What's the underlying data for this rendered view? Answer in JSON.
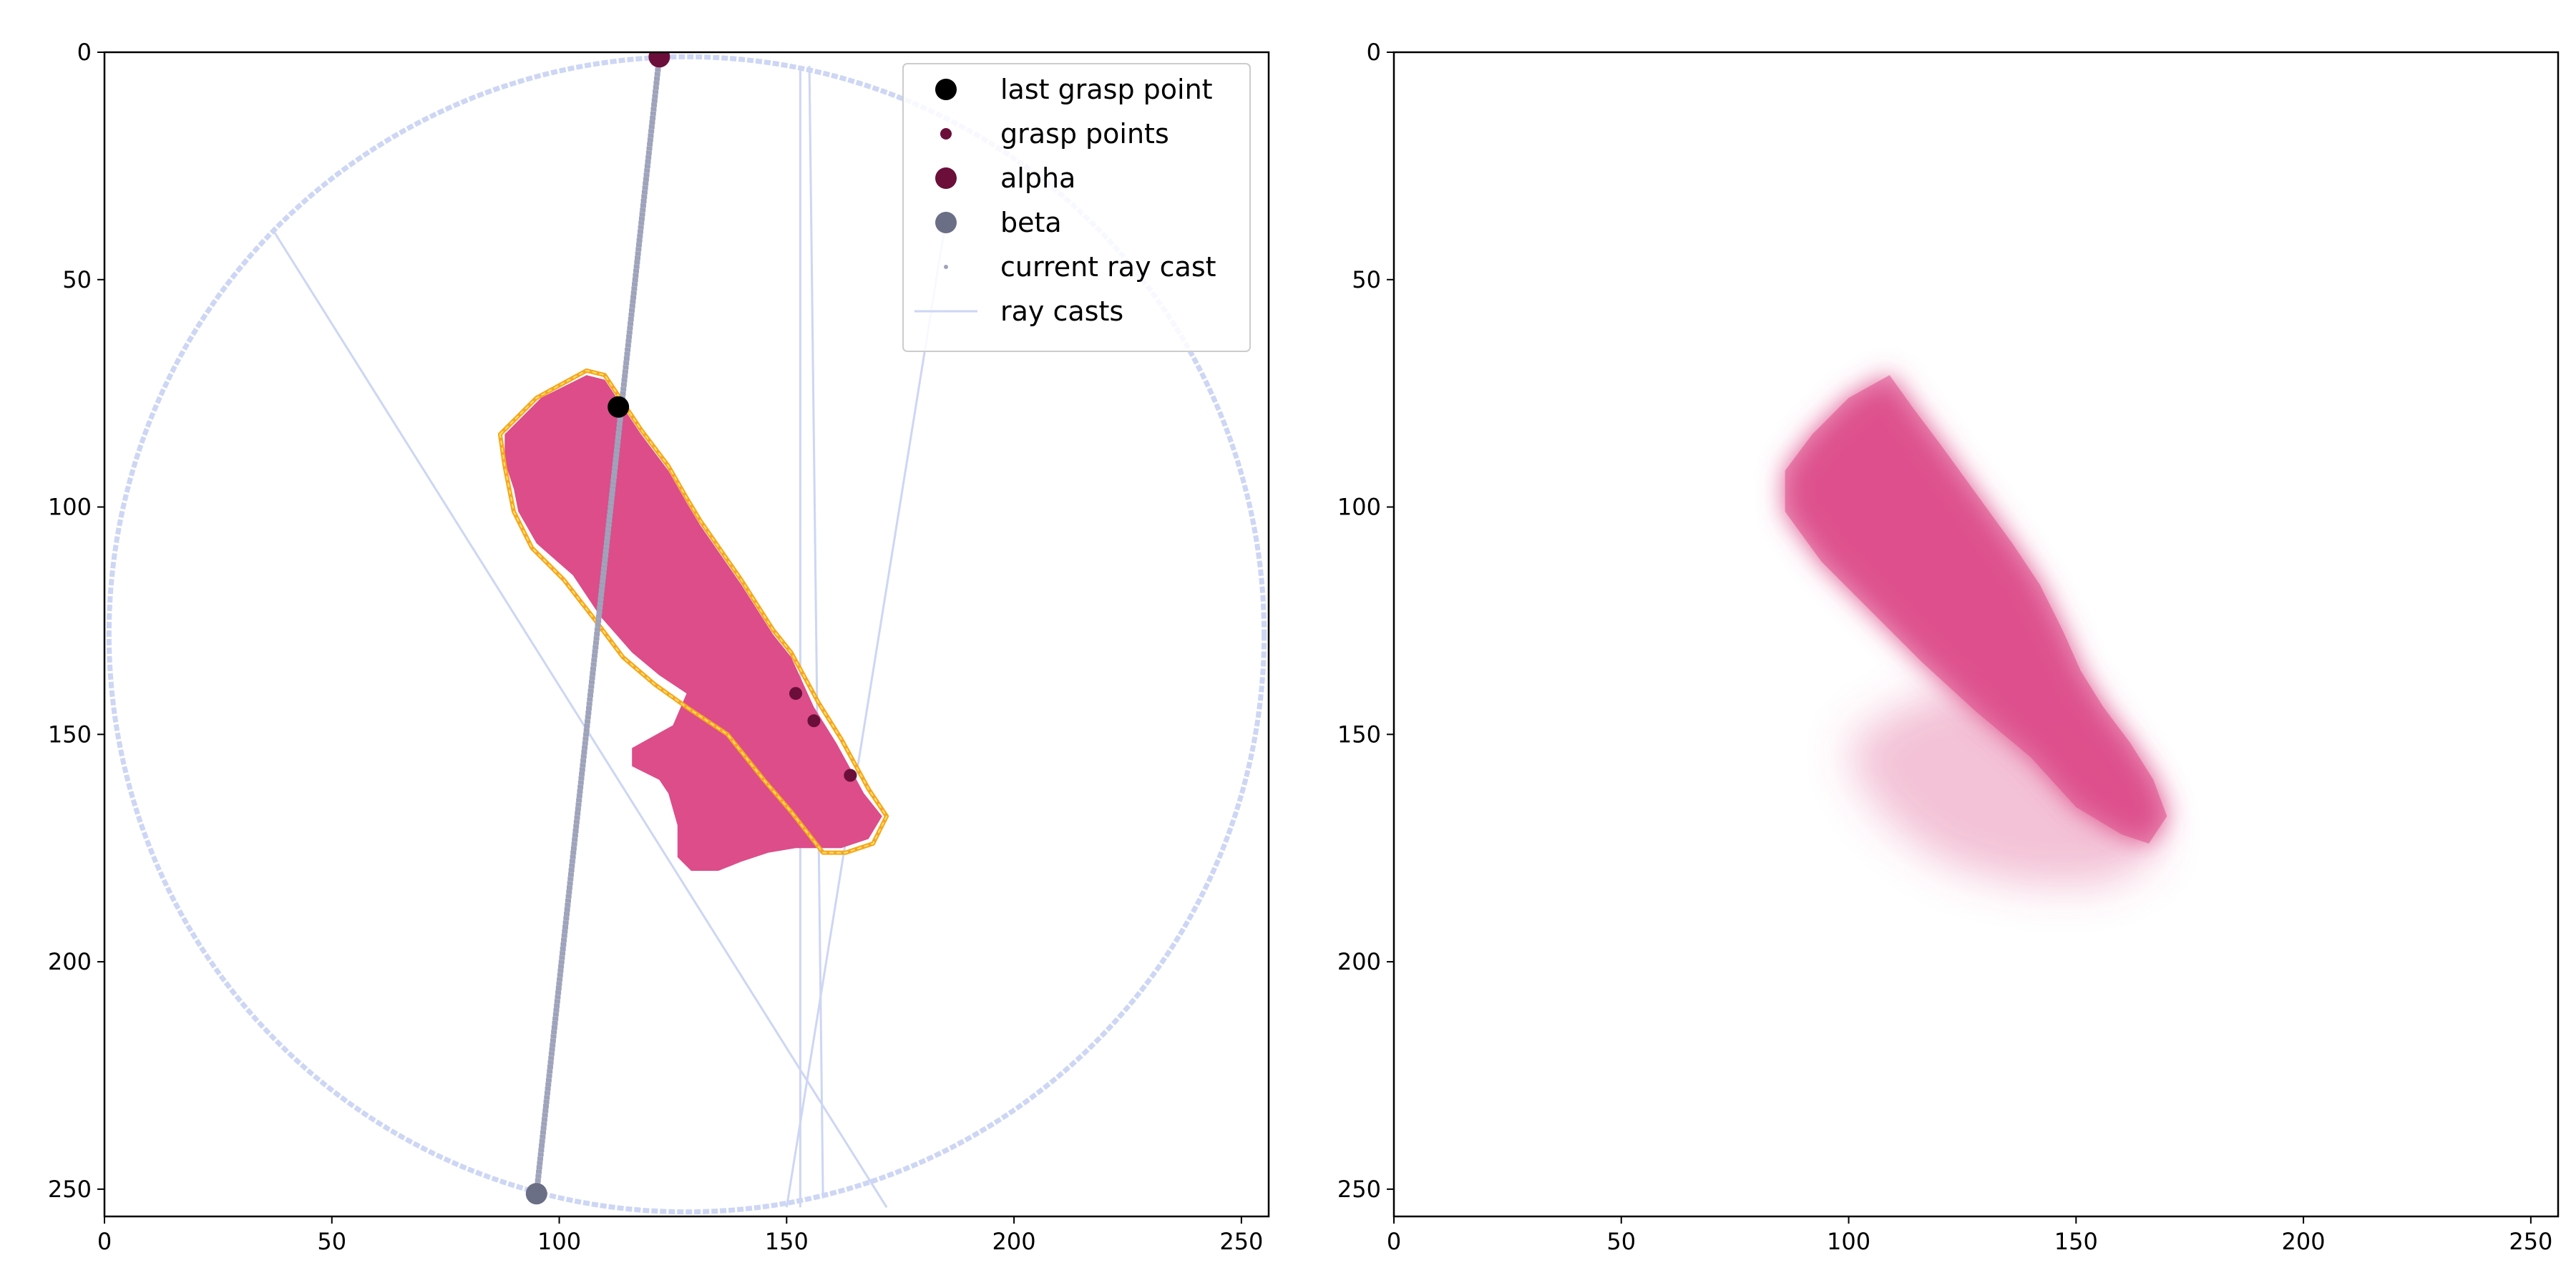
{
  "chart_data": [
    {
      "type": "scatter",
      "title": "",
      "xlabel": "",
      "ylabel": "",
      "xlim": [
        0,
        256
      ],
      "ylim": [
        256,
        0
      ],
      "y_inverted": true,
      "x_ticks": [
        "0",
        "50",
        "100",
        "150",
        "200",
        "250"
      ],
      "y_ticks": [
        "0",
        "50",
        "100",
        "150",
        "200",
        "250"
      ],
      "grid": false,
      "legend_position": "top-right",
      "legend": [
        {
          "label": "last grasp point",
          "marker": "dot-large",
          "color": "#000000"
        },
        {
          "label": "grasp points",
          "marker": "dot-small",
          "color": "#6b0f3a"
        },
        {
          "label": "alpha",
          "marker": "dot-large",
          "color": "#6b0f3a"
        },
        {
          "label": "beta",
          "marker": "dot-large",
          "color": "#6b6f85"
        },
        {
          "label": "current ray cast",
          "marker": "dot-tiny",
          "color": "#9ea3bb"
        },
        {
          "label": "ray casts",
          "marker": "line",
          "color": "#cdd6f4"
        }
      ],
      "colors": {
        "object_fill": "#dc4d8a",
        "contour": "#f5a623",
        "ray_casts": "#cdd6f4",
        "current_ray_cast": "#9ea3bb",
        "grasp_points": "#6b0f3a",
        "last_grasp_point": "#000000",
        "alpha": "#6b0f3a",
        "beta": "#6b6f85"
      },
      "boundary_circle": {
        "center": [
          128,
          128
        ],
        "radius": 127
      },
      "object_polygon": [
        [
          88,
          84
        ],
        [
          96,
          76
        ],
        [
          106,
          71
        ],
        [
          110,
          72
        ],
        [
          114,
          78
        ],
        [
          118,
          84
        ],
        [
          124,
          92
        ],
        [
          128,
          99
        ],
        [
          131,
          104
        ],
        [
          140,
          117
        ],
        [
          147,
          128
        ],
        [
          151,
          133
        ],
        [
          156,
          144
        ],
        [
          161,
          152
        ],
        [
          167,
          163
        ],
        [
          171,
          168
        ],
        [
          168,
          173
        ],
        [
          162,
          175
        ],
        [
          152,
          175
        ],
        [
          146,
          176
        ],
        [
          140,
          178
        ],
        [
          135,
          180
        ],
        [
          129,
          180
        ],
        [
          126,
          177
        ],
        [
          126,
          170
        ],
        [
          124,
          163
        ],
        [
          122,
          160
        ],
        [
          116,
          157
        ],
        [
          116,
          153
        ],
        [
          125,
          148
        ],
        [
          128,
          141
        ],
        [
          122,
          137
        ],
        [
          116,
          132
        ],
        [
          109,
          124
        ],
        [
          103,
          115
        ],
        [
          95,
          108
        ],
        [
          91,
          101
        ],
        [
          90,
          96
        ],
        [
          88,
          90
        ]
      ],
      "contour_polygon": [
        [
          87,
          84
        ],
        [
          95,
          76
        ],
        [
          106,
          70
        ],
        [
          110,
          71
        ],
        [
          114,
          77
        ],
        [
          118,
          83
        ],
        [
          124,
          91
        ],
        [
          128,
          98
        ],
        [
          131,
          103
        ],
        [
          140,
          116
        ],
        [
          147,
          127
        ],
        [
          151,
          132
        ],
        [
          157,
          143
        ],
        [
          162,
          151
        ],
        [
          168,
          162
        ],
        [
          172,
          168
        ],
        [
          169,
          174
        ],
        [
          163,
          176
        ],
        [
          158,
          176
        ],
        [
          151,
          167
        ],
        [
          145,
          160
        ],
        [
          137,
          150
        ],
        [
          128,
          144
        ],
        [
          121,
          139
        ],
        [
          114,
          133
        ],
        [
          108,
          125
        ],
        [
          101,
          116
        ],
        [
          94,
          109
        ],
        [
          90,
          101
        ],
        [
          88,
          91
        ]
      ],
      "ray_casts": [
        {
          "from": [
            37,
            39
          ],
          "to": [
            172,
            254
          ]
        },
        {
          "from": [
            153,
            3
          ],
          "to": [
            153,
            254
          ]
        },
        {
          "from": [
            155,
            3
          ],
          "to": [
            158,
            252
          ]
        },
        {
          "from": [
            185,
            37
          ],
          "to": [
            150,
            254
          ]
        }
      ],
      "current_ray_cast": {
        "from": [
          122,
          1
        ],
        "to": [
          95,
          251
        ]
      },
      "grasp_points": [
        [
          152,
          141
        ],
        [
          156,
          147
        ],
        [
          164,
          159
        ]
      ],
      "last_grasp_point": [
        113,
        78
      ],
      "alpha": [
        122,
        1
      ],
      "beta": [
        95,
        251
      ]
    },
    {
      "type": "heatmap",
      "title": "",
      "xlabel": "",
      "ylabel": "",
      "xlim": [
        0,
        256
      ],
      "ylim": [
        256,
        0
      ],
      "y_inverted": true,
      "x_ticks": [
        "0",
        "50",
        "100",
        "150",
        "200",
        "250"
      ],
      "y_ticks": [
        "0",
        "50",
        "100",
        "150",
        "200",
        "250"
      ],
      "grid": false,
      "colors": {
        "fill": "#dc4d8a"
      },
      "dense_region": [
        [
          109,
          71
        ],
        [
          114,
          78
        ],
        [
          120,
          86
        ],
        [
          128,
          97
        ],
        [
          136,
          108
        ],
        [
          142,
          117
        ],
        [
          147,
          127
        ],
        [
          151,
          136
        ],
        [
          156,
          144
        ],
        [
          162,
          152
        ],
        [
          167,
          160
        ],
        [
          170,
          168
        ],
        [
          166,
          174
        ],
        [
          160,
          172
        ],
        [
          150,
          166
        ],
        [
          140,
          155
        ],
        [
          128,
          145
        ],
        [
          116,
          134
        ],
        [
          104,
          122
        ],
        [
          94,
          112
        ],
        [
          86,
          101
        ],
        [
          86,
          92
        ],
        [
          92,
          84
        ],
        [
          100,
          76
        ]
      ],
      "faint_region": [
        [
          128,
          140
        ],
        [
          140,
          146
        ],
        [
          152,
          152
        ],
        [
          162,
          160
        ],
        [
          168,
          170
        ],
        [
          166,
          178
        ],
        [
          156,
          183
        ],
        [
          140,
          183
        ],
        [
          126,
          180
        ],
        [
          116,
          175
        ],
        [
          108,
          168
        ],
        [
          102,
          160
        ],
        [
          100,
          152
        ],
        [
          108,
          146
        ],
        [
          118,
          141
        ]
      ]
    }
  ]
}
